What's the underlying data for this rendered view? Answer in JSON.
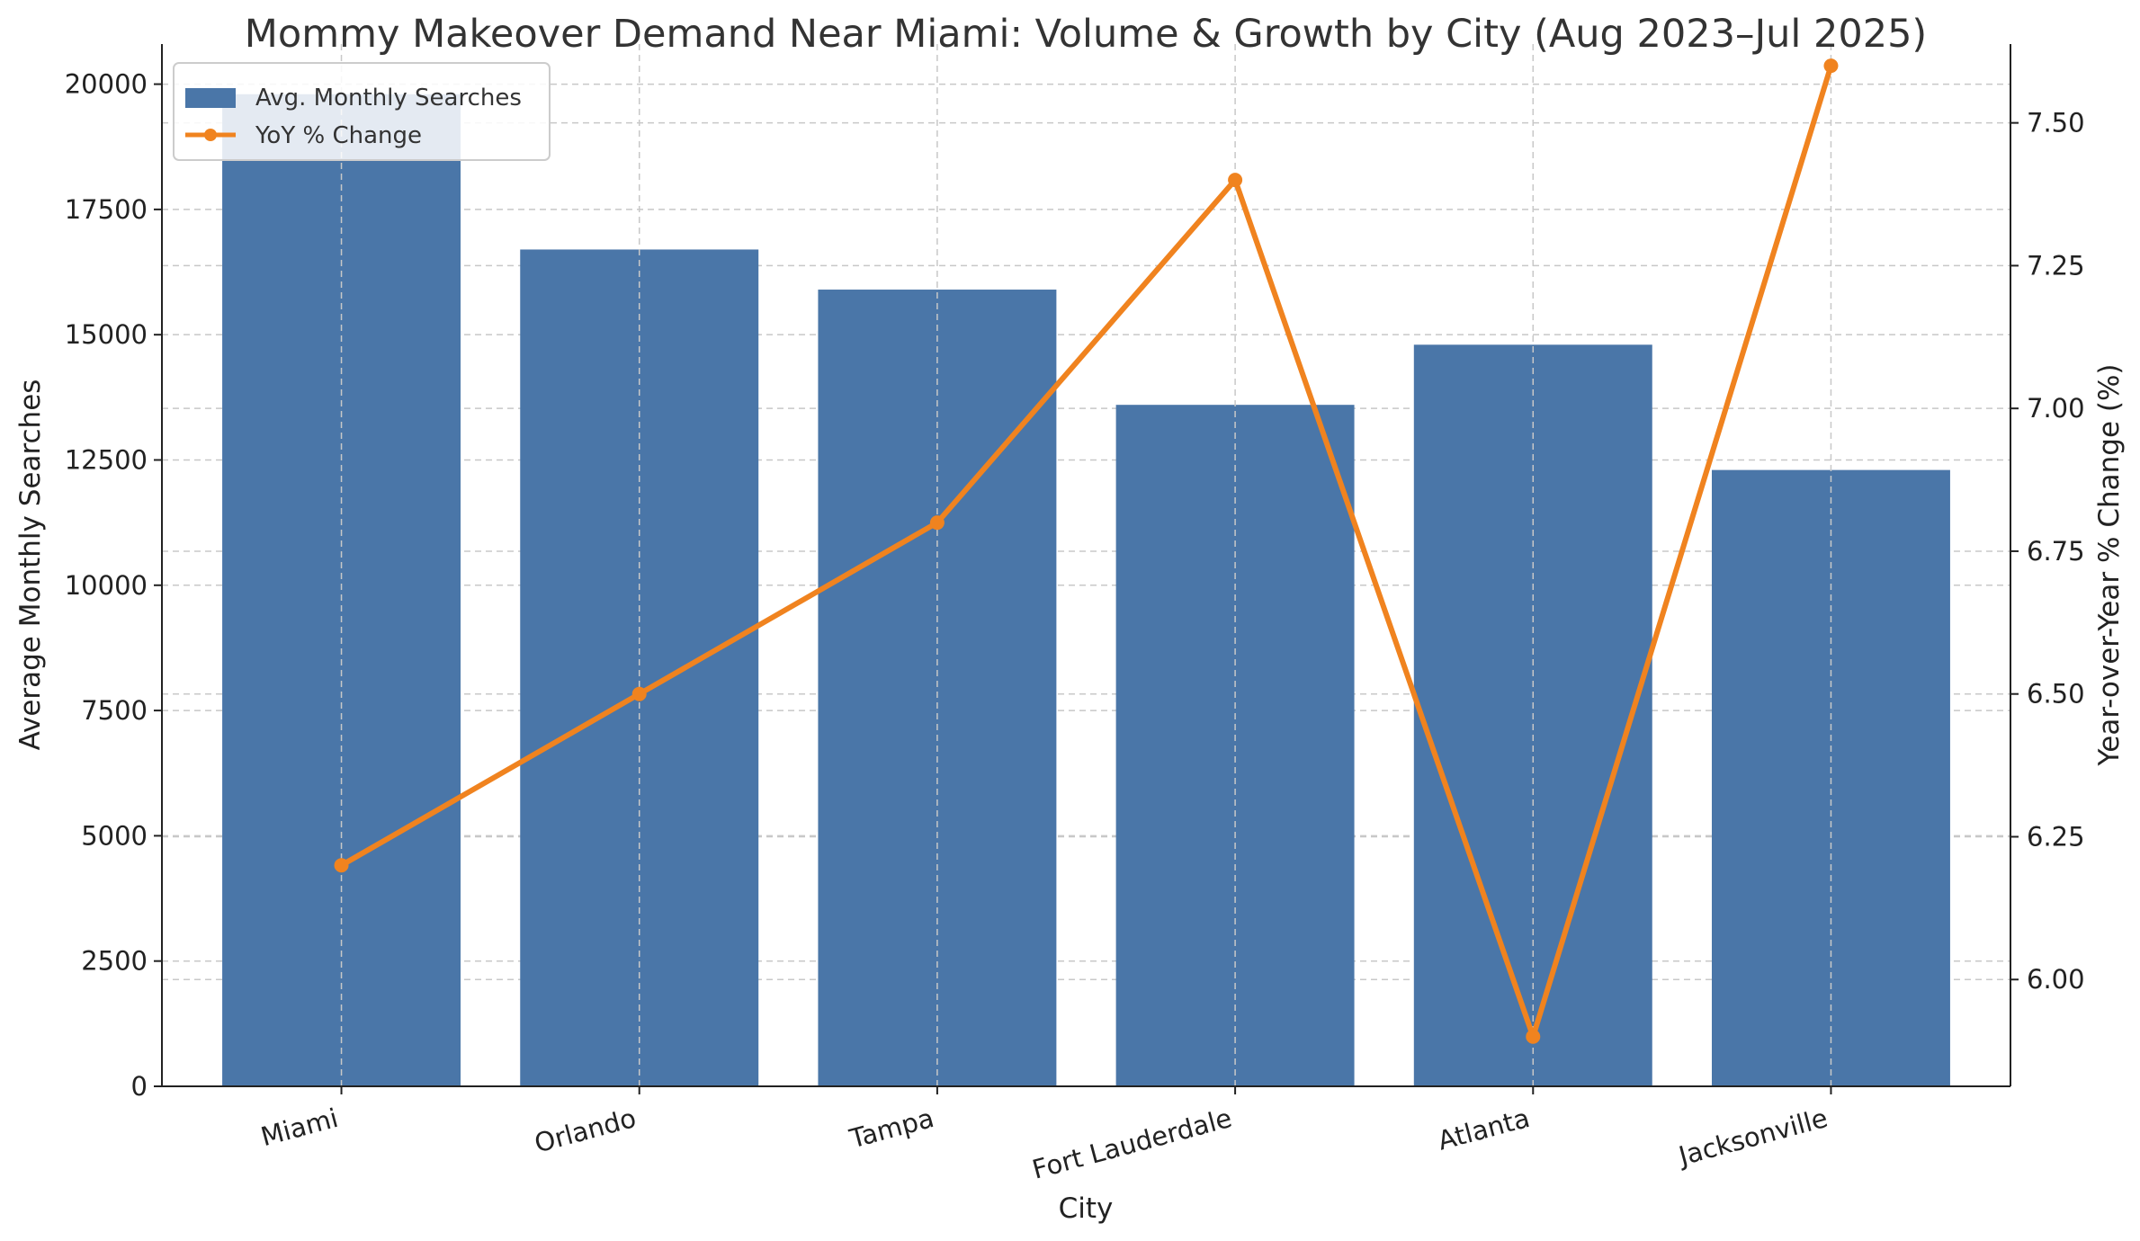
{
  "chart_data": {
    "type": "bar+line",
    "title": "Mommy Makeover Demand Near Miami: Volume & Growth by City (Aug 2023–Jul 2025)",
    "xlabel": "City",
    "ylabel": "Average Monthly Searches",
    "y2label": "Year-over-Year % Change (%)",
    "categories": [
      "Miami",
      "Orlando",
      "Tampa",
      "Fort Lauderdale",
      "Atlanta",
      "Jacksonville"
    ],
    "series": [
      {
        "name": "Avg. Monthly Searches",
        "kind": "bar",
        "axis": "left",
        "color": "#4a76a8",
        "values": [
          19800,
          16700,
          15900,
          13600,
          14800,
          12300
        ]
      },
      {
        "name": "YoY % Change",
        "kind": "line",
        "axis": "right",
        "color": "#f0831f",
        "values": [
          6.2,
          6.5,
          6.8,
          7.4,
          5.9,
          7.6
        ]
      }
    ],
    "ylim": [
      0,
      20800
    ],
    "yticks": [
      0,
      2500,
      5000,
      7500,
      10000,
      12500,
      15000,
      17500,
      20000
    ],
    "y2lim": [
      5.813,
      7.638
    ],
    "y2ticks": [
      6.0,
      6.25,
      6.5,
      6.75,
      7.0,
      7.25,
      7.5
    ],
    "y2tick_labels": [
      "6.00",
      "6.25",
      "6.50",
      "6.75",
      "7.00",
      "7.25",
      "7.50"
    ],
    "grid": true,
    "legend_position": "top-left"
  }
}
